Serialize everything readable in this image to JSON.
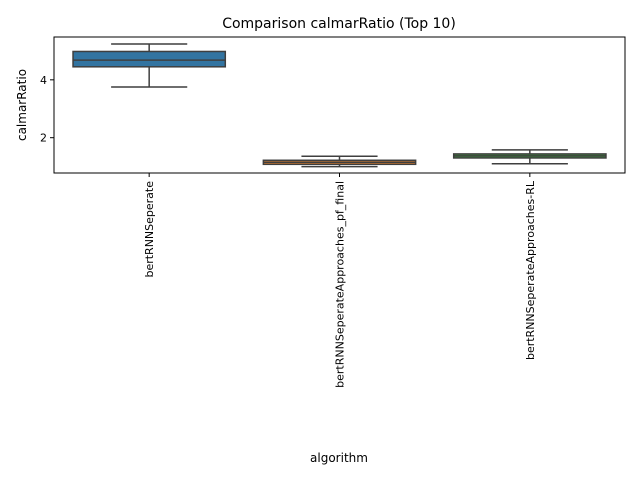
{
  "chart_data": {
    "type": "box",
    "title": "Comparison calmarRatio (Top 10)",
    "xlabel": "algorithm",
    "ylabel": "calmarRatio",
    "ylim": [
      0.78,
      5.48
    ],
    "yticks": [
      2,
      4
    ],
    "grid": false,
    "legend": "none",
    "categories": [
      "bertRNNSeperate",
      "bertRNNSeperateApproaches_pf_final",
      "bertRNNSeperateApproaches-RL"
    ],
    "boxes": [
      {
        "whisker_low": 3.75,
        "q1": 4.45,
        "median": 4.68,
        "q3": 4.98,
        "whisker_high": 5.24,
        "color": "#3274a1"
      },
      {
        "whisker_low": 1.0,
        "q1": 1.08,
        "median": 1.15,
        "q3": 1.22,
        "whisker_high": 1.36,
        "color": "#e1812c"
      },
      {
        "whisker_low": 1.1,
        "q1": 1.3,
        "median": 1.37,
        "q3": 1.44,
        "whisker_high": 1.58,
        "color": "#3a923a"
      }
    ]
  }
}
